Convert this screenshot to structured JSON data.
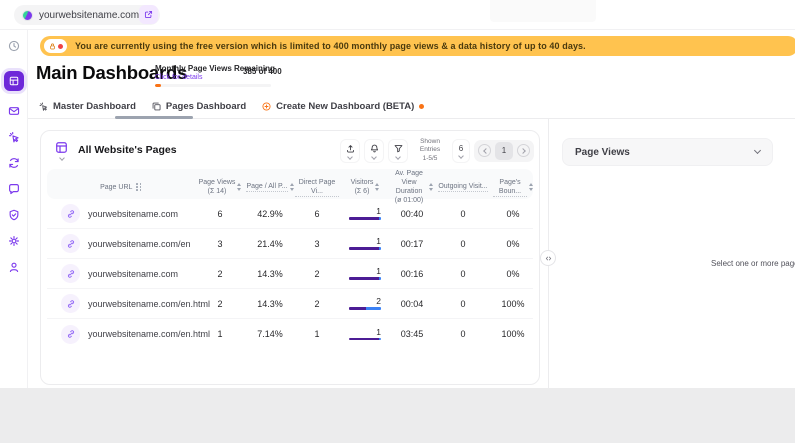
{
  "colors": {
    "primary": "#7C3AED",
    "primary_dark": "#6D28D9",
    "accent_orange": "#F97316",
    "banner_bg": "#FFC34F",
    "bar_purple": "#4C1D95",
    "bar_blue": "#3B82F6"
  },
  "topbar": {
    "site_selector": {
      "label": "yourwebsitename.com",
      "icon": "site-favicon",
      "chevron": "chevron-down-icon"
    },
    "open_site_button": {
      "icon": "external-link-icon"
    }
  },
  "sidebar": {
    "items": [
      {
        "name": "history",
        "icon": "history-icon",
        "active": false,
        "muted": true
      },
      {
        "name": "dashboards",
        "icon": "dashboard-icon",
        "active": true,
        "muted": false
      },
      {
        "name": "inbox",
        "icon": "mail-icon",
        "active": false,
        "muted": false
      },
      {
        "name": "events",
        "icon": "click-icon",
        "active": false,
        "muted": false
      },
      {
        "name": "sessions",
        "icon": "sync-icon",
        "active": false,
        "muted": false
      },
      {
        "name": "messages",
        "icon": "chat-icon",
        "active": false,
        "muted": false
      },
      {
        "name": "privacy",
        "icon": "shield-icon",
        "active": false,
        "muted": false
      },
      {
        "name": "settings",
        "icon": "gear-icon",
        "active": false,
        "muted": false
      },
      {
        "name": "account",
        "icon": "user-icon",
        "active": false,
        "muted": false
      }
    ]
  },
  "banner": {
    "icon": "lock-icon",
    "text": "You are currently using the free version which is limited to 400 monthly page views & a data history of up to 40 days."
  },
  "page": {
    "title": "Main Dashboards",
    "quota": {
      "label": "Monthly Page Views Remaining",
      "link": "Click for details",
      "value": "385 of 400",
      "progress_pct": 5
    }
  },
  "tabs": [
    {
      "label": "Master Dashboard",
      "icon": "cursor-click-icon",
      "active": false
    },
    {
      "label": "Pages Dashboard",
      "icon": "pages-icon",
      "active": true
    },
    {
      "label": "Create New Dashboard (BETA)",
      "icon": "plus-circle-icon",
      "active": false,
      "dot": true
    }
  ],
  "table": {
    "icon": "grid-icon",
    "title": "All Website's Pages",
    "toolbar": {
      "buttons": [
        "upload-icon",
        "bell-icon",
        "filter-icon"
      ],
      "shown_entries_label": "Shown Entries",
      "shown_entries_value": "1-5/5",
      "page_size": "6",
      "current_page": "1"
    },
    "columns": [
      {
        "label": "Page URL",
        "sub": "",
        "sort": false,
        "settings": true,
        "dotted": false
      },
      {
        "label": "Page Views",
        "sub": "(Σ 14)",
        "sort": true,
        "settings": false,
        "dotted": false
      },
      {
        "label": "Page / All P...",
        "sub": "",
        "sort": true,
        "settings": false,
        "dotted": true
      },
      {
        "label": "Direct Page Vi...",
        "sub": "",
        "sort": false,
        "settings": false,
        "dotted": true
      },
      {
        "label": "Visitors",
        "sub": "(Σ 6)",
        "sort": true,
        "settings": false,
        "dotted": false
      },
      {
        "label": "Av. Page View Duration",
        "sub": "(ø 01:00)",
        "sort": true,
        "settings": false,
        "dotted": false
      },
      {
        "label": "Outgoing Visit...",
        "sub": "",
        "sort": false,
        "settings": false,
        "dotted": true
      },
      {
        "label": "Page's Boun...",
        "sub": "",
        "sort": true,
        "settings": false,
        "dotted": true
      }
    ],
    "rows": [
      {
        "url": "yourwebsitename.com",
        "page_views": "6",
        "page_all_pct": "42.9%",
        "direct": "6",
        "visitors": "1",
        "bar": [
          93,
          7
        ],
        "duration": "00:40",
        "outgoing": "0",
        "bounce": "0%"
      },
      {
        "url": "yourwebsitename.com/en",
        "page_views": "3",
        "page_all_pct": "21.4%",
        "direct": "3",
        "visitors": "1",
        "bar": [
          93,
          7
        ],
        "duration": "00:17",
        "outgoing": "0",
        "bounce": "0%"
      },
      {
        "url": "yourwebsitename.com",
        "page_views": "2",
        "page_all_pct": "14.3%",
        "direct": "2",
        "visitors": "1",
        "bar": [
          93,
          7
        ],
        "duration": "00:16",
        "outgoing": "0",
        "bounce": "0%"
      },
      {
        "url": "yourwebsitename.com/en.html",
        "page_views": "2",
        "page_all_pct": "14.3%",
        "direct": "2",
        "visitors": "2",
        "bar": [
          52,
          48
        ],
        "duration": "00:04",
        "outgoing": "0",
        "bounce": "100%"
      },
      {
        "url": "yourwebsitename.com/en.html",
        "page_views": "1",
        "page_all_pct": "7.14%",
        "direct": "1",
        "visitors": "1",
        "bar": [
          93,
          7
        ],
        "duration": "03:45",
        "outgoing": "0",
        "bounce": "100%"
      }
    ]
  },
  "right_panel": {
    "metric_select": {
      "value": "Page Views",
      "icon": "chevron-down-icon"
    },
    "empty_message": "Select one or more pages to v",
    "divider_toggle_icon": "collapse-horizontal-icon"
  }
}
